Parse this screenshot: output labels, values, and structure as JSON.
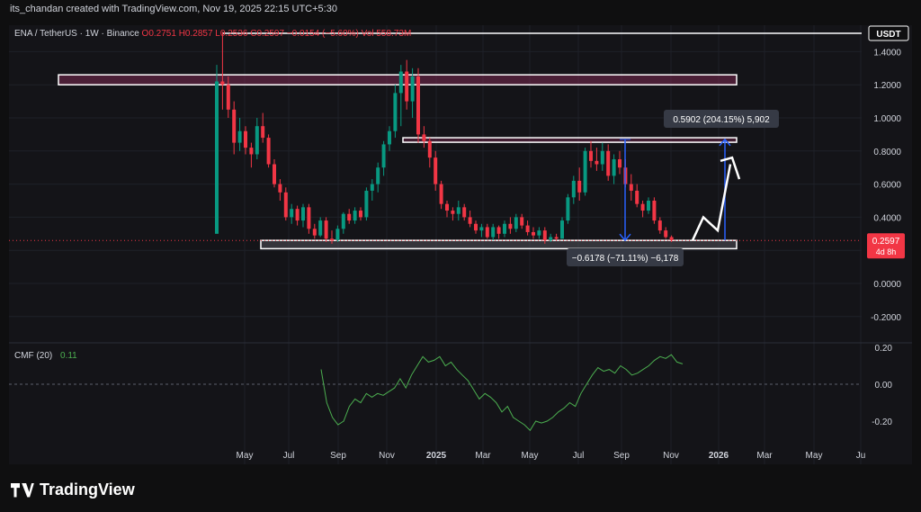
{
  "header": {
    "credit": "its_chandan created with TradingView.com, Nov 19, 2025 22:15 UTC+5:30"
  },
  "legend": {
    "symbol": "ENA / TetherUS · 1W · Binance",
    "open": "O0.2751",
    "high": "H0.2857",
    "low": "L0.2536",
    "close": "C0.2597",
    "change": "−0.0154 (−5.60%)",
    "volume": "Vol 558.73M"
  },
  "currency_badge": "USDT",
  "price_badge": {
    "price": "0.2597",
    "countdown": "4d 8h"
  },
  "measure_up": "0.5902 (204.15%) 5,902",
  "measure_down": "−0.6178 (−71.11%) −6,178",
  "cmf": {
    "label": "CMF (20)",
    "value": "0.11"
  },
  "brand": "TradingView",
  "colors": {
    "up": "#089981",
    "down": "#f23645",
    "cmf": "#4caf50",
    "measure": "#2962ff"
  },
  "chart_data": [
    {
      "type": "candlestick",
      "title": "ENA / TetherUS · 1W · Binance",
      "y_ticks": [
        "1.4000",
        "1.2000",
        "1.0000",
        "0.8000",
        "0.6000",
        "0.4000",
        "0.2000",
        "0.0000",
        "-0.2000"
      ],
      "ylim": [
        -0.27,
        1.55
      ],
      "x_ticks": [
        "May",
        "Jul",
        "Sep",
        "Nov",
        "2025",
        "Mar",
        "May",
        "Jul",
        "Sep",
        "Nov",
        "2026",
        "Mar",
        "May",
        "Ju"
      ],
      "candles_ohlc": [
        [
          0.3,
          1.32,
          0.3,
          1.22
        ],
        [
          1.22,
          1.52,
          1.05,
          1.2
        ],
        [
          1.2,
          1.25,
          1.0,
          1.05
        ],
        [
          1.05,
          1.1,
          0.78,
          0.85
        ],
        [
          0.85,
          1.0,
          0.8,
          0.92
        ],
        [
          0.92,
          0.95,
          0.78,
          0.82
        ],
        [
          0.82,
          0.85,
          0.7,
          0.78
        ],
        [
          0.78,
          1.0,
          0.75,
          0.95
        ],
        [
          0.95,
          1.03,
          0.85,
          0.88
        ],
        [
          0.88,
          0.9,
          0.7,
          0.72
        ],
        [
          0.72,
          0.75,
          0.58,
          0.6
        ],
        [
          0.6,
          0.63,
          0.5,
          0.55
        ],
        [
          0.55,
          0.58,
          0.38,
          0.4
        ],
        [
          0.4,
          0.48,
          0.36,
          0.45
        ],
        [
          0.45,
          0.47,
          0.35,
          0.38
        ],
        [
          0.38,
          0.48,
          0.34,
          0.46
        ],
        [
          0.46,
          0.48,
          0.3,
          0.33
        ],
        [
          0.33,
          0.36,
          0.27,
          0.29
        ],
        [
          0.29,
          0.4,
          0.28,
          0.38
        ],
        [
          0.38,
          0.4,
          0.25,
          0.27
        ],
        [
          0.27,
          0.32,
          0.24,
          0.26
        ],
        [
          0.26,
          0.35,
          0.25,
          0.33
        ],
        [
          0.33,
          0.43,
          0.3,
          0.42
        ],
        [
          0.42,
          0.45,
          0.36,
          0.38
        ],
        [
          0.38,
          0.46,
          0.36,
          0.44
        ],
        [
          0.44,
          0.46,
          0.38,
          0.4
        ],
        [
          0.4,
          0.58,
          0.38,
          0.56
        ],
        [
          0.56,
          0.63,
          0.5,
          0.6
        ],
        [
          0.6,
          0.73,
          0.55,
          0.7
        ],
        [
          0.7,
          0.86,
          0.65,
          0.84
        ],
        [
          0.84,
          0.95,
          0.8,
          0.92
        ],
        [
          0.92,
          1.2,
          0.88,
          1.15
        ],
        [
          1.15,
          1.32,
          0.95,
          1.28
        ],
        [
          1.28,
          1.35,
          1.05,
          1.1
        ],
        [
          1.1,
          1.3,
          1.0,
          1.25
        ],
        [
          1.25,
          1.3,
          0.85,
          0.9
        ],
        [
          0.9,
          0.95,
          0.82,
          0.86
        ],
        [
          0.86,
          0.88,
          0.7,
          0.76
        ],
        [
          0.76,
          0.8,
          0.56,
          0.6
        ],
        [
          0.6,
          0.62,
          0.45,
          0.48
        ],
        [
          0.48,
          0.5,
          0.4,
          0.44
        ],
        [
          0.44,
          0.46,
          0.38,
          0.42
        ],
        [
          0.42,
          0.5,
          0.38,
          0.46
        ],
        [
          0.46,
          0.48,
          0.38,
          0.4
        ],
        [
          0.4,
          0.44,
          0.34,
          0.36
        ],
        [
          0.36,
          0.38,
          0.3,
          0.32
        ],
        [
          0.32,
          0.36,
          0.28,
          0.34
        ],
        [
          0.34,
          0.36,
          0.27,
          0.28
        ],
        [
          0.28,
          0.36,
          0.26,
          0.34
        ],
        [
          0.34,
          0.35,
          0.27,
          0.3
        ],
        [
          0.3,
          0.38,
          0.28,
          0.36
        ],
        [
          0.36,
          0.4,
          0.3,
          0.33
        ],
        [
          0.33,
          0.42,
          0.31,
          0.4
        ],
        [
          0.4,
          0.42,
          0.33,
          0.35
        ],
        [
          0.35,
          0.38,
          0.29,
          0.31
        ],
        [
          0.31,
          0.34,
          0.27,
          0.29
        ],
        [
          0.29,
          0.34,
          0.27,
          0.32
        ],
        [
          0.32,
          0.34,
          0.24,
          0.26
        ],
        [
          0.26,
          0.3,
          0.25,
          0.28
        ],
        [
          0.28,
          0.3,
          0.26,
          0.27
        ],
        [
          0.27,
          0.4,
          0.27,
          0.38
        ],
        [
          0.38,
          0.54,
          0.36,
          0.52
        ],
        [
          0.52,
          0.65,
          0.48,
          0.62
        ],
        [
          0.62,
          0.7,
          0.5,
          0.55
        ],
        [
          0.55,
          0.82,
          0.53,
          0.8
        ],
        [
          0.8,
          0.86,
          0.7,
          0.74
        ],
        [
          0.74,
          0.82,
          0.68,
          0.72
        ],
        [
          0.72,
          0.85,
          0.68,
          0.8
        ],
        [
          0.8,
          0.84,
          0.62,
          0.65
        ],
        [
          0.65,
          0.78,
          0.6,
          0.75
        ],
        [
          0.75,
          0.8,
          0.66,
          0.7
        ],
        [
          0.7,
          0.75,
          0.58,
          0.6
        ],
        [
          0.6,
          0.66,
          0.5,
          0.56
        ],
        [
          0.56,
          0.6,
          0.46,
          0.48
        ],
        [
          0.48,
          0.5,
          0.4,
          0.44
        ],
        [
          0.44,
          0.52,
          0.42,
          0.5
        ],
        [
          0.5,
          0.52,
          0.36,
          0.38
        ],
        [
          0.38,
          0.4,
          0.3,
          0.32
        ],
        [
          0.32,
          0.34,
          0.27,
          0.28
        ],
        [
          0.28,
          0.29,
          0.25,
          0.26
        ]
      ],
      "resistance_zone": [
        1.2,
        1.26
      ],
      "mid_resistance_zone": [
        0.86,
        0.88
      ],
      "support_zone": [
        0.21,
        0.26
      ],
      "current_price": 0.2597,
      "measure_up_range": [
        0.26,
        0.87
      ],
      "measure_down_range": [
        0.26,
        0.87
      ],
      "projection_path": [
        [
          0.26,
          0.26
        ],
        [
          0.4,
          0.4
        ],
        [
          0.3,
          0.32
        ],
        [
          0.75,
          0.72
        ]
      ]
    },
    {
      "type": "line",
      "title": "CMF (20)",
      "y_ticks": [
        "0.20",
        "0.00",
        "-0.20"
      ],
      "ylim": [
        -0.28,
        0.22
      ],
      "values": [
        0.08,
        -0.1,
        -0.18,
        -0.22,
        -0.2,
        -0.12,
        -0.08,
        -0.1,
        -0.05,
        -0.07,
        -0.05,
        -0.06,
        -0.04,
        -0.02,
        0.03,
        -0.02,
        0.05,
        0.1,
        0.15,
        0.12,
        0.13,
        0.15,
        0.1,
        0.12,
        0.08,
        0.05,
        0.02,
        -0.03,
        -0.08,
        -0.05,
        -0.07,
        -0.1,
        -0.15,
        -0.12,
        -0.18,
        -0.2,
        -0.22,
        -0.25,
        -0.2,
        -0.21,
        -0.2,
        -0.18,
        -0.15,
        -0.13,
        -0.1,
        -0.12,
        -0.05,
        0.0,
        0.05,
        0.09,
        0.07,
        0.08,
        0.06,
        0.1,
        0.08,
        0.05,
        0.06,
        0.08,
        0.1,
        0.13,
        0.15,
        0.14,
        0.16,
        0.12,
        0.11
      ]
    }
  ]
}
